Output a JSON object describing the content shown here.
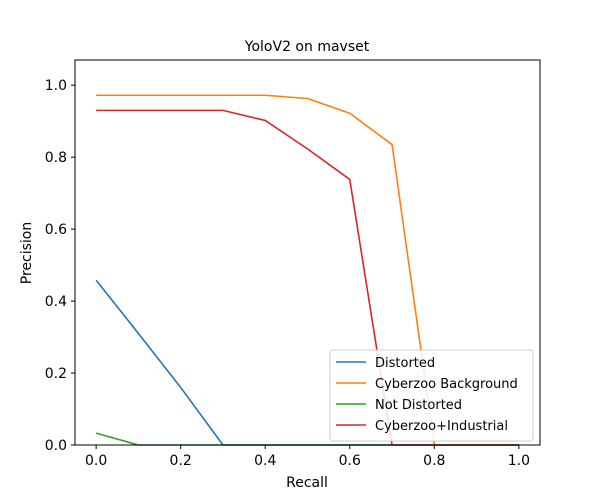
{
  "chart_data": {
    "type": "line",
    "title": "YoloV2 on mavset",
    "xlabel": "Recall",
    "ylabel": "Precision",
    "xlim": [
      -0.05,
      1.05
    ],
    "ylim": [
      0.0,
      1.07
    ],
    "x_ticks": [
      0.0,
      0.2,
      0.4,
      0.6,
      0.8,
      1.0
    ],
    "x_tick_labels": [
      "0.0",
      "0.2",
      "0.4",
      "0.6",
      "0.8",
      "1.0"
    ],
    "y_ticks": [
      0.0,
      0.2,
      0.4,
      0.6,
      0.8,
      1.0
    ],
    "y_tick_labels": [
      "0.0",
      "0.2",
      "0.4",
      "0.6",
      "0.8",
      "1.0"
    ],
    "grid": false,
    "legend_position": "bottom-right",
    "x": [
      0.0,
      0.1,
      0.2,
      0.3,
      0.4,
      0.5,
      0.6,
      0.7,
      0.8,
      0.9,
      1.0
    ],
    "series": [
      {
        "name": "Distorted",
        "color": "#1f77b4",
        "values": [
          0.458,
          0.31,
          0.16,
          0.0,
          0.0,
          0.0,
          0.0,
          0.0,
          0.0,
          0.0,
          0.0
        ]
      },
      {
        "name": "Cyberzoo Background",
        "color": "#ff7f0e",
        "values": [
          0.972,
          0.972,
          0.972,
          0.972,
          0.972,
          0.963,
          0.922,
          0.835,
          0.0,
          0.0,
          0.0
        ]
      },
      {
        "name": "Not Distorted",
        "color": "#2ca02c",
        "values": [
          0.033,
          0.0,
          0.0,
          0.0,
          0.0,
          0.0,
          0.0,
          0.0,
          0.0,
          0.0,
          0.0
        ]
      },
      {
        "name": "Cyberzoo+Industrial",
        "color": "#d62728",
        "values": [
          0.93,
          0.93,
          0.93,
          0.93,
          0.902,
          0.823,
          0.738,
          0.0,
          0.0,
          0.0,
          0.0
        ]
      }
    ]
  }
}
